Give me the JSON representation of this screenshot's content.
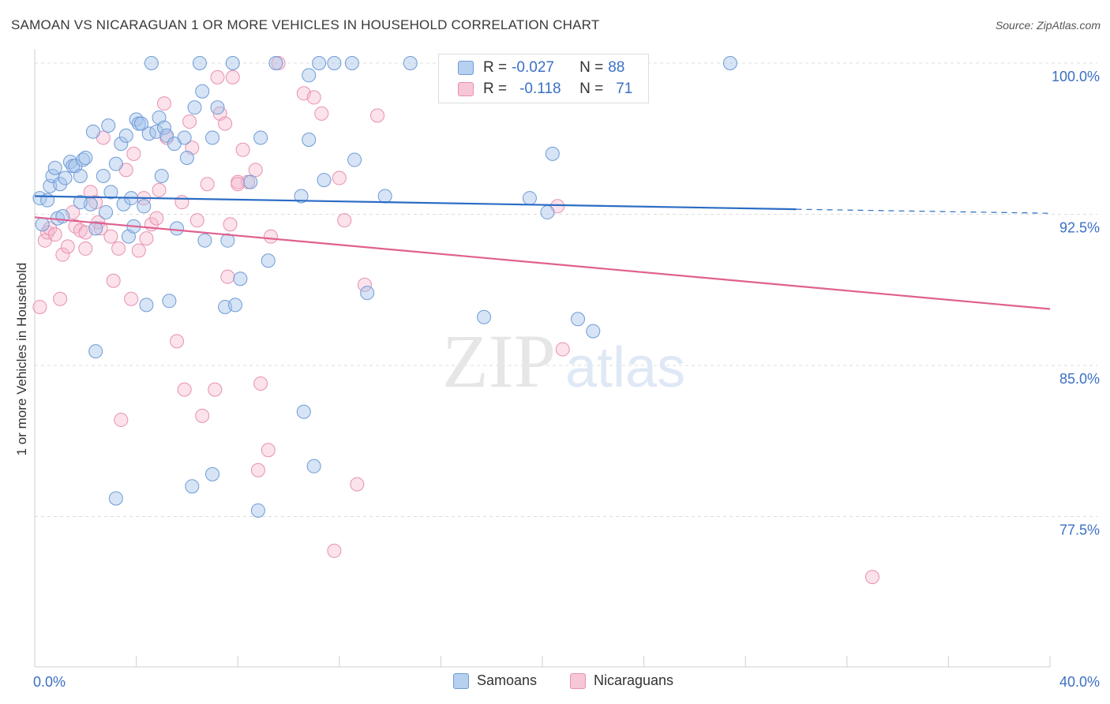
{
  "title": "SAMOAN VS NICARAGUAN 1 OR MORE VEHICLES IN HOUSEHOLD CORRELATION CHART",
  "source": "Source: ZipAtlas.com",
  "watermark": {
    "zip": "ZIP",
    "atlas": "atlas"
  },
  "colors": {
    "samoan_fill": "rgba(164,196,236,0.45)",
    "samoan_stroke": "#6f9bd6",
    "samoan_line": "#2b6cc4",
    "nicaraguan_fill": "rgba(245,182,204,0.4)",
    "nicaraguan_stroke": "#e891b1",
    "nicaraguan_line": "#e0608f",
    "tick_label": "#3b70c4",
    "grid": "#dcdcdc"
  },
  "legend": {
    "samoan": {
      "r_label": "R = ",
      "r_value": "-0.027",
      "n_label": "N = ",
      "n_value": "88"
    },
    "nicaraguan": {
      "r_label": "R = ",
      "r_value": "-0.118",
      "n_label": "N = ",
      "n_value": "71"
    }
  },
  "bottom_legend": {
    "samoan": "Samoans",
    "nicaraguan": "Nicaraguans"
  },
  "chart_data": {
    "type": "scatter",
    "title": "SAMOAN VS NICARAGUAN 1 OR MORE VEHICLES IN HOUSEHOLD CORRELATION CHART",
    "xlabel": "",
    "ylabel": "1 or more Vehicles in Household",
    "xlim": [
      0,
      40
    ],
    "ylim": [
      70.5,
      100.5
    ],
    "x_tick_labels": [
      "0.0%",
      "40.0%"
    ],
    "y_ticks": [
      100.0,
      92.5,
      85.0,
      77.5
    ],
    "y_tick_labels": [
      "100.0%",
      "92.5%",
      "85.0%",
      "77.5%"
    ],
    "grid": "horizontal dashed",
    "legend_position": "top-center",
    "series": [
      {
        "name": "Samoans",
        "trend": {
          "x0": 0.0,
          "y0": 93.4,
          "x1": 30.0,
          "y1": 92.75,
          "dashed_to_x": 40.0,
          "dashed_y": 92.55
        },
        "points": [
          [
            0.2,
            93.3
          ],
          [
            0.5,
            93.2
          ],
          [
            0.3,
            92.0
          ],
          [
            0.6,
            93.9
          ],
          [
            0.7,
            94.4
          ],
          [
            0.8,
            94.8
          ],
          [
            0.9,
            92.3
          ],
          [
            1.0,
            94.0
          ],
          [
            1.1,
            92.4
          ],
          [
            1.2,
            94.3
          ],
          [
            1.4,
            95.1
          ],
          [
            1.5,
            94.9
          ],
          [
            1.6,
            94.9
          ],
          [
            1.8,
            94.4
          ],
          [
            1.9,
            95.2
          ],
          [
            2.0,
            95.3
          ],
          [
            2.2,
            93.0
          ],
          [
            2.4,
            91.8
          ],
          [
            2.3,
            96.6
          ],
          [
            2.7,
            94.4
          ],
          [
            2.8,
            92.6
          ],
          [
            2.9,
            96.9
          ],
          [
            3.0,
            93.6
          ],
          [
            3.2,
            95.0
          ],
          [
            3.4,
            96.0
          ],
          [
            3.5,
            93.0
          ],
          [
            3.6,
            96.4
          ],
          [
            3.7,
            91.4
          ],
          [
            3.8,
            93.3
          ],
          [
            3.9,
            91.9
          ],
          [
            4.0,
            97.2
          ],
          [
            4.1,
            97.0
          ],
          [
            4.3,
            92.9
          ],
          [
            4.4,
            88.0
          ],
          [
            4.5,
            96.5
          ],
          [
            4.6,
            100.0
          ],
          [
            4.8,
            96.6
          ],
          [
            4.9,
            97.3
          ],
          [
            5.0,
            94.4
          ],
          [
            5.1,
            96.8
          ],
          [
            5.2,
            96.4
          ],
          [
            5.3,
            88.2
          ],
          [
            5.5,
            96.0
          ],
          [
            5.6,
            91.8
          ],
          [
            6.0,
            95.3
          ],
          [
            6.3,
            97.8
          ],
          [
            6.5,
            100.0
          ],
          [
            6.6,
            98.6
          ],
          [
            6.7,
            91.2
          ],
          [
            7.0,
            96.3
          ],
          [
            7.2,
            97.8
          ],
          [
            7.5,
            87.9
          ],
          [
            7.6,
            91.2
          ],
          [
            7.8,
            100.0
          ],
          [
            7.9,
            88.0
          ],
          [
            8.1,
            89.3
          ],
          [
            8.5,
            94.1
          ],
          [
            8.9,
            96.3
          ],
          [
            9.2,
            90.2
          ],
          [
            9.5,
            100.0
          ],
          [
            10.5,
            93.4
          ],
          [
            10.8,
            99.4
          ],
          [
            11.2,
            100.0
          ],
          [
            11.4,
            94.2
          ],
          [
            11.8,
            100.0
          ],
          [
            12.5,
            100.0
          ],
          [
            12.6,
            95.2
          ],
          [
            13.1,
            88.6
          ],
          [
            13.8,
            93.4
          ],
          [
            14.8,
            100.0
          ],
          [
            17.7,
            87.4
          ],
          [
            19.5,
            93.3
          ],
          [
            20.2,
            92.6
          ],
          [
            20.4,
            95.5
          ],
          [
            21.4,
            87.3
          ],
          [
            22.0,
            86.7
          ],
          [
            27.4,
            100.0
          ],
          [
            3.2,
            78.4
          ],
          [
            2.4,
            85.7
          ],
          [
            6.2,
            79.0
          ],
          [
            7.0,
            79.6
          ],
          [
            8.8,
            77.8
          ],
          [
            10.6,
            82.7
          ],
          [
            11.0,
            80.0
          ],
          [
            4.2,
            97.0
          ],
          [
            5.9,
            96.3
          ],
          [
            10.8,
            96.2
          ],
          [
            1.8,
            93.1
          ]
        ]
      },
      {
        "name": "Nicaraguans",
        "trend": {
          "x0": 0.0,
          "y0": 92.35,
          "x1": 40.0,
          "y1": 87.8
        },
        "points": [
          [
            0.2,
            87.9
          ],
          [
            0.4,
            91.2
          ],
          [
            0.5,
            91.6
          ],
          [
            0.6,
            91.8
          ],
          [
            0.8,
            91.5
          ],
          [
            1.0,
            88.3
          ],
          [
            1.1,
            90.5
          ],
          [
            1.3,
            90.9
          ],
          [
            1.5,
            92.6
          ],
          [
            1.6,
            91.9
          ],
          [
            1.8,
            91.7
          ],
          [
            2.0,
            90.8
          ],
          [
            2.2,
            93.6
          ],
          [
            2.4,
            93.1
          ],
          [
            2.5,
            92.1
          ],
          [
            2.6,
            91.8
          ],
          [
            2.7,
            96.3
          ],
          [
            3.0,
            91.4
          ],
          [
            3.1,
            89.2
          ],
          [
            3.3,
            90.8
          ],
          [
            3.4,
            82.3
          ],
          [
            3.6,
            94.7
          ],
          [
            3.8,
            88.3
          ],
          [
            3.9,
            95.5
          ],
          [
            4.1,
            90.7
          ],
          [
            4.4,
            91.3
          ],
          [
            4.6,
            92.0
          ],
          [
            4.8,
            92.3
          ],
          [
            4.9,
            93.7
          ],
          [
            5.1,
            98.0
          ],
          [
            5.2,
            96.3
          ],
          [
            5.6,
            86.2
          ],
          [
            5.8,
            93.1
          ],
          [
            5.9,
            83.8
          ],
          [
            6.1,
            97.1
          ],
          [
            6.2,
            95.8
          ],
          [
            6.4,
            92.2
          ],
          [
            6.6,
            82.5
          ],
          [
            6.8,
            94.0
          ],
          [
            7.1,
            83.8
          ],
          [
            7.2,
            99.3
          ],
          [
            7.3,
            97.5
          ],
          [
            7.5,
            97.0
          ],
          [
            7.6,
            89.4
          ],
          [
            7.7,
            92.0
          ],
          [
            7.8,
            99.3
          ],
          [
            8.0,
            94.1
          ],
          [
            8.2,
            95.7
          ],
          [
            8.4,
            94.1
          ],
          [
            8.7,
            94.7
          ],
          [
            8.8,
            79.8
          ],
          [
            8.9,
            84.1
          ],
          [
            9.2,
            80.8
          ],
          [
            9.3,
            91.4
          ],
          [
            9.6,
            100.0
          ],
          [
            10.6,
            98.5
          ],
          [
            11.0,
            98.3
          ],
          [
            11.3,
            97.5
          ],
          [
            11.8,
            75.8
          ],
          [
            12.0,
            94.3
          ],
          [
            12.2,
            92.2
          ],
          [
            12.7,
            79.1
          ],
          [
            13.0,
            89.0
          ],
          [
            13.5,
            97.4
          ],
          [
            20.6,
            92.9
          ],
          [
            20.8,
            85.8
          ],
          [
            23.8,
            100.0
          ],
          [
            33.0,
            74.5
          ],
          [
            8.0,
            94.0
          ],
          [
            2.0,
            91.6
          ],
          [
            4.3,
            93.3
          ]
        ]
      }
    ]
  }
}
